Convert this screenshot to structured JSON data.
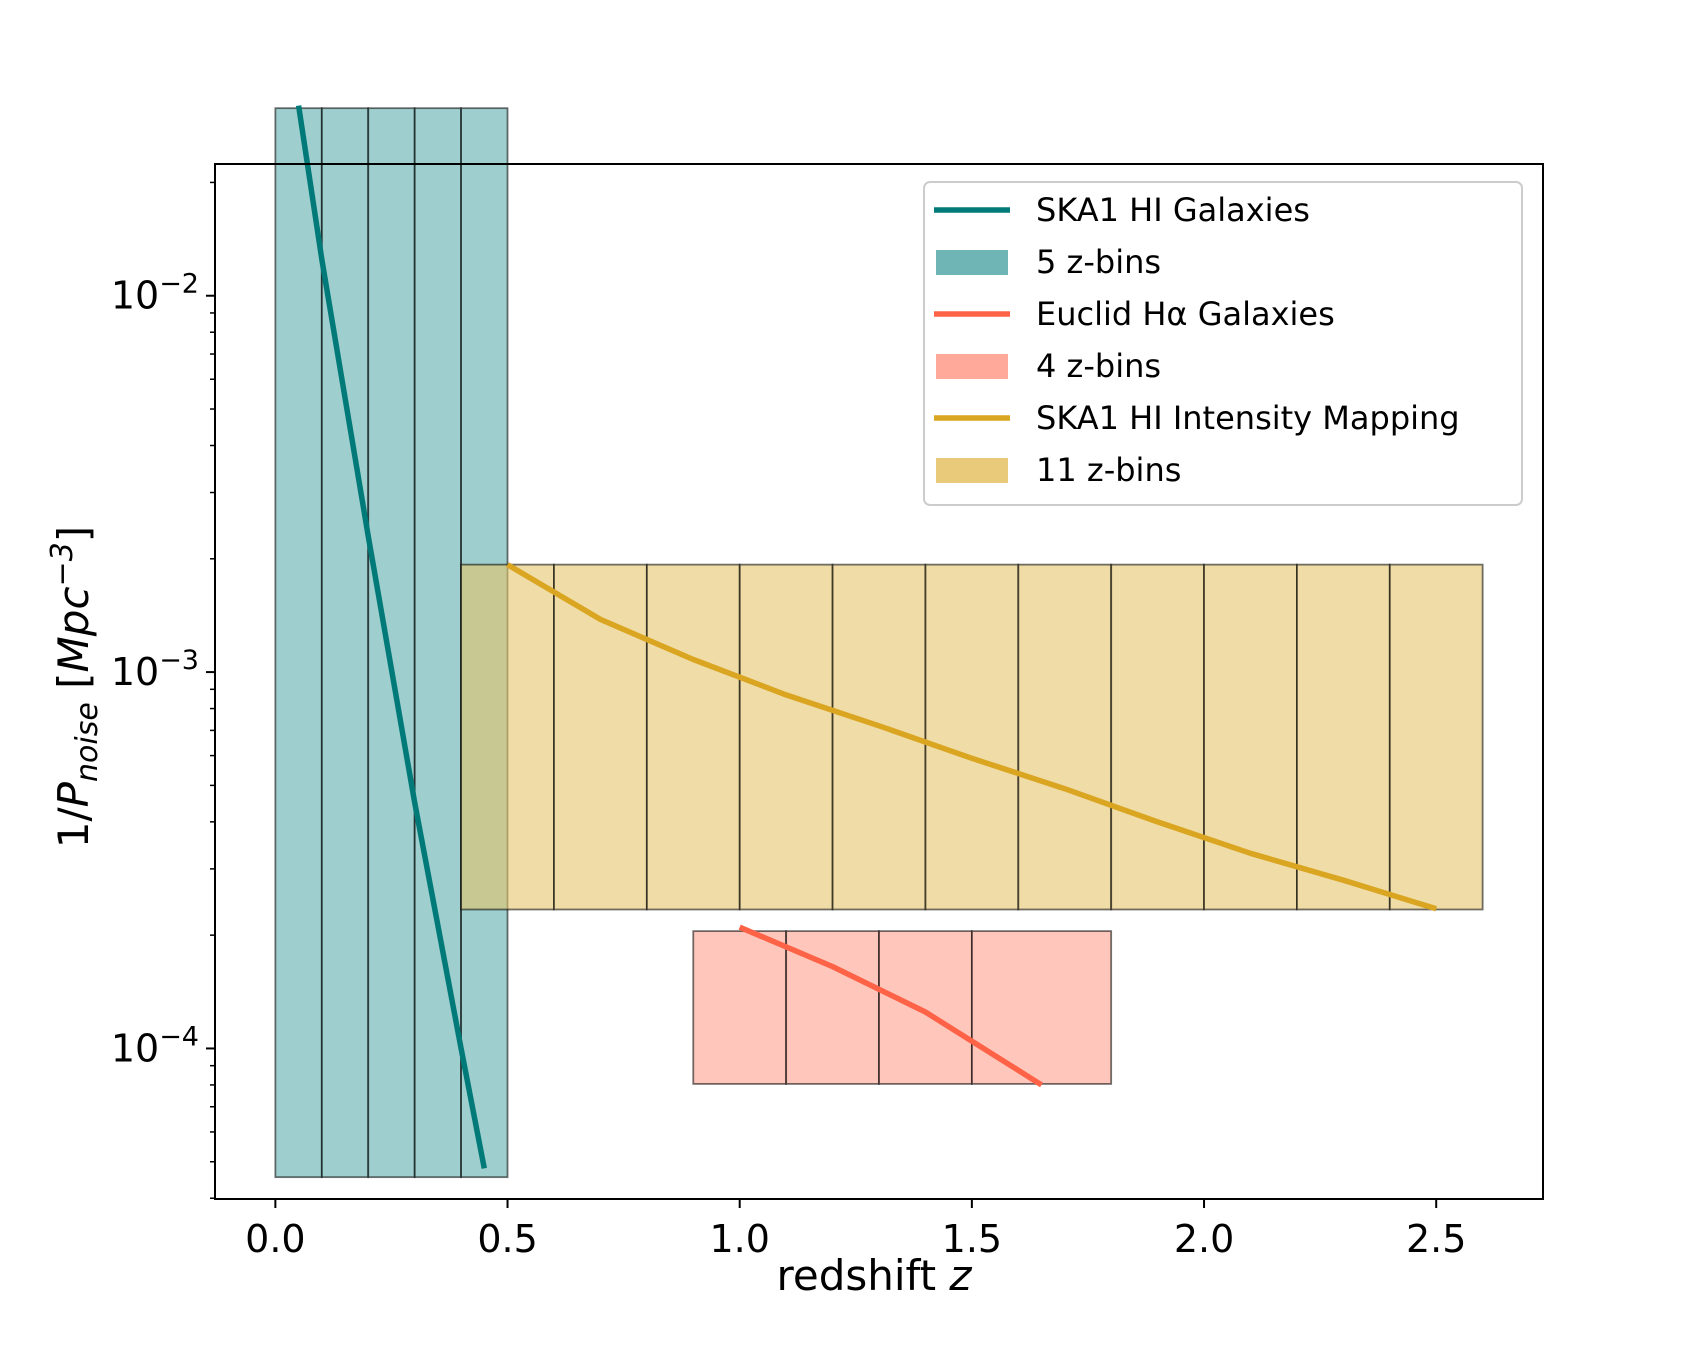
{
  "chart_data": {
    "type": "line",
    "xlabel": {
      "main": "redshift ",
      "var": "z"
    },
    "ylabel": {
      "pre": "1/",
      "P": "P",
      "sub": "noise",
      "unit_open": " [",
      "unit": "Mpc",
      "sup": "−3",
      "unit_close": "]"
    },
    "xlim": [
      -0.13,
      2.73
    ],
    "ylim_log10": [
      -4.4,
      -1.65
    ],
    "yscale": "log",
    "x_ticks": [
      {
        "value": 0.0,
        "label": "0.0"
      },
      {
        "value": 0.5,
        "label": "0.5"
      },
      {
        "value": 1.0,
        "label": "1.0"
      },
      {
        "value": 1.5,
        "label": "1.5"
      },
      {
        "value": 2.0,
        "label": "2.0"
      },
      {
        "value": 2.5,
        "label": "2.5"
      }
    ],
    "y_major_ticks": [
      {
        "exp": -2,
        "base": "10",
        "sup": "−2"
      },
      {
        "exp": -3,
        "base": "10",
        "sup": "−3"
      },
      {
        "exp": -4,
        "base": "10",
        "sup": "−4"
      }
    ],
    "series": [
      {
        "name": "SKA1 HI Galaxies",
        "color": "#007a78",
        "x": [
          0.05,
          0.1,
          0.2,
          0.3,
          0.4,
          0.45
        ],
        "y": [
          0.032,
          0.0125,
          0.0023,
          0.00045,
          0.0001,
          4.8e-05
        ]
      },
      {
        "name": "Euclid Hα Galaxies",
        "color": "#ff6347",
        "x": [
          1.0,
          1.2,
          1.4,
          1.65
        ],
        "y": [
          0.00021,
          0.000165,
          0.000125,
          8e-05
        ]
      },
      {
        "name": "SKA1 HI Intensity Mapping",
        "color": "#daa520",
        "x": [
          0.5,
          0.7,
          0.9,
          1.1,
          1.3,
          1.5,
          1.7,
          1.9,
          2.1,
          2.3,
          2.5
        ],
        "y": [
          0.00193,
          0.00138,
          0.00108,
          0.00087,
          0.00072,
          0.00059,
          0.00049,
          0.0004,
          0.00033,
          0.00028,
          0.000235
        ]
      }
    ],
    "bin_sets": [
      {
        "name": "5 z-bins",
        "color": "#5fadad",
        "edges": [
          0.0,
          0.1,
          0.2,
          0.3,
          0.4,
          0.5
        ],
        "ymin": 4.55e-05,
        "ymax": 0.0315
      },
      {
        "name": "4 z-bins",
        "color": "#ffa08f",
        "edges": [
          0.9,
          1.1,
          1.3,
          1.5,
          1.8
        ],
        "ymin": 8.05e-05,
        "ymax": 0.000205
      },
      {
        "name": "11 z-bins",
        "color": "#e5c46b",
        "edges": [
          0.4,
          0.6,
          0.8,
          1.0,
          1.2,
          1.4,
          1.6,
          1.8,
          2.0,
          2.2,
          2.4,
          2.6
        ],
        "ymin": 0.000234,
        "ymax": 0.00193
      }
    ],
    "legend": {
      "placement": "top-right",
      "entries": [
        {
          "label": "SKA1 HI Galaxies",
          "kind": "line",
          "color": "#007a78"
        },
        {
          "label": "5 z-bins",
          "kind": "patch",
          "color": "#5fadad"
        },
        {
          "label": "Euclid Hα Galaxies",
          "kind": "line",
          "color": "#ff6347"
        },
        {
          "label": "4 z-bins",
          "kind": "patch",
          "color": "#ffa08f"
        },
        {
          "label": "SKA1 HI Intensity Mapping",
          "kind": "line",
          "color": "#daa520"
        },
        {
          "label": "11 z-bins",
          "kind": "patch",
          "color": "#e5c46b"
        }
      ]
    }
  }
}
